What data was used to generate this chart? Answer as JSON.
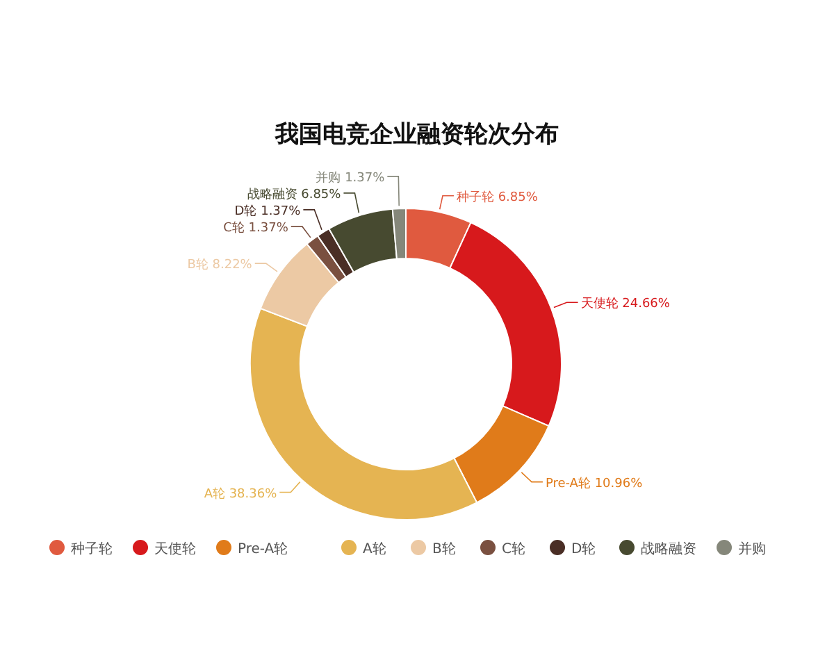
{
  "chart_data": {
    "type": "donut",
    "title": "我国电竞企业融资轮次分布",
    "categories": [
      "种子轮",
      "天使轮",
      "Pre-A轮",
      "A轮",
      "B轮",
      "C轮",
      "D轮",
      "战略融资",
      "并购"
    ],
    "values": [
      6.85,
      24.66,
      10.96,
      38.36,
      8.22,
      1.37,
      1.37,
      6.85,
      1.37
    ],
    "colors": [
      "#e05a3f",
      "#d7191c",
      "#e07b1a",
      "#e5b452",
      "#ecc9a4",
      "#7a5040",
      "#4a2e25",
      "#474a30",
      "#85877a"
    ],
    "value_labels": [
      "种子轮 6.85%",
      "天使轮 24.66%",
      "Pre-A轮 10.96%",
      "A轮 38.36%",
      "B轮 8.22%",
      "C轮 1.37%",
      "D轮 1.37%",
      "战略融资 6.85%",
      "并购 1.37%"
    ],
    "legend": "bottom"
  }
}
